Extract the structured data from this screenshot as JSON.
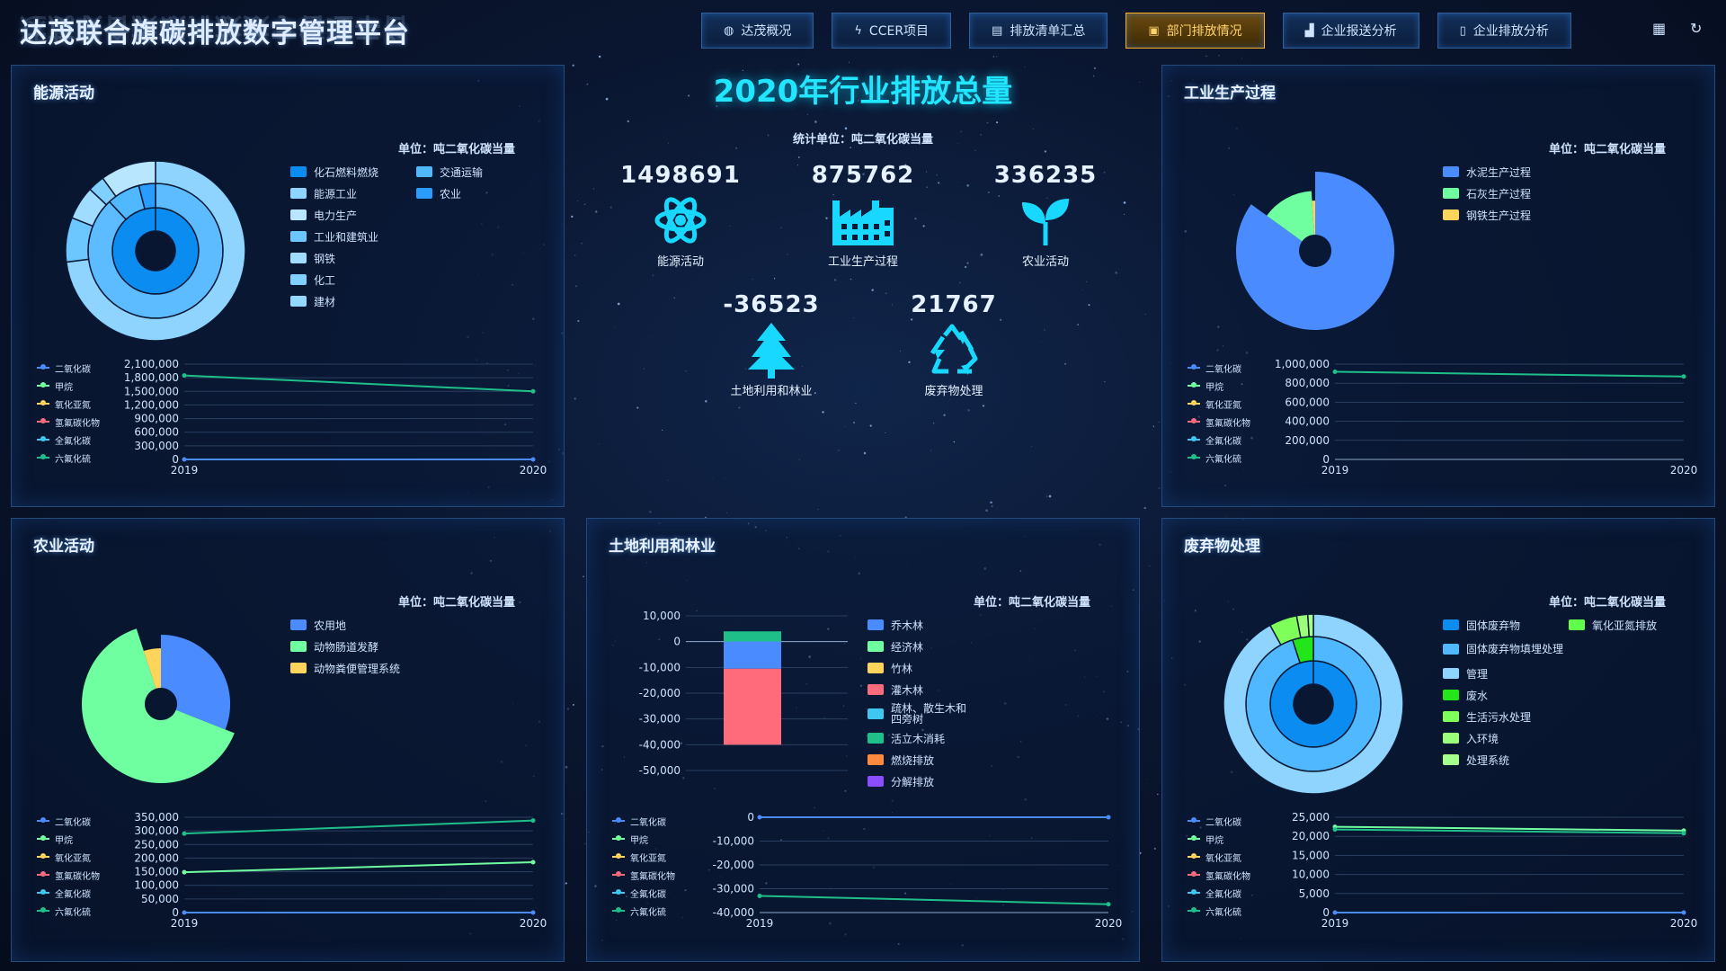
{
  "header": {
    "app_title": "达茂联合旗碳排放数字管理平台",
    "nav": [
      {
        "label": "达茂概况",
        "icon": "globe-icon",
        "active": false
      },
      {
        "label": "CCER项目",
        "icon": "bolt-icon",
        "active": false
      },
      {
        "label": "排放清单汇总",
        "icon": "list-icon",
        "active": false
      },
      {
        "label": "部门排放情况",
        "icon": "document-icon",
        "active": true
      },
      {
        "label": "企业报送分析",
        "icon": "bar-chart-icon",
        "active": false
      },
      {
        "label": "企业排放分析",
        "icon": "file-icon",
        "active": false
      }
    ],
    "icons": [
      "calendar-icon",
      "refresh-icon"
    ]
  },
  "center": {
    "title": "2020年行业排放总量",
    "unit": "统计单位：吨二氧化碳当量",
    "stats": [
      {
        "value": "1498691",
        "label": "能源活动",
        "icon": "atom-icon"
      },
      {
        "value": "875762",
        "label": "工业生产过程",
        "icon": "factory-icon"
      },
      {
        "value": "336235",
        "label": "农业活动",
        "icon": "sprout-icon"
      },
      {
        "value": "-36523",
        "label": "土地利用和林业",
        "icon": "tree-icon"
      },
      {
        "value": "21767",
        "label": "废弃物处理",
        "icon": "recycle-icon"
      }
    ]
  },
  "gas_legend": [
    "二氧化碳",
    "甲烷",
    "氧化亚氮",
    "氢氟碳化物",
    "全氟化碳",
    "六氟化硫"
  ],
  "gas_colors": [
    "#4a8cff",
    "#6fffa0",
    "#ffd45a",
    "#ff6b7a",
    "#3ec8f0",
    "#1fbf8a"
  ],
  "panels": {
    "energy": {
      "title": "能源活动",
      "unit": "单位：吨二氧化碳当量",
      "legend": [
        {
          "label": "化石燃料燃烧",
          "color": "#0a8cf0"
        },
        {
          "label": "交通运输",
          "color": "#4fb8ff"
        },
        {
          "label": "能源工业",
          "color": "#8fd4ff"
        },
        {
          "label": "农业",
          "color": "#2a9bff"
        },
        {
          "label": "电力生产",
          "color": "#b8e6ff"
        },
        {
          "label": "工业和建筑业",
          "color": "#6cc6ff"
        },
        {
          "label": "钢铁",
          "color": "#9fdcff"
        },
        {
          "label": "化工",
          "color": "#7fcfff"
        },
        {
          "label": "建材",
          "color": "#94d8ff"
        }
      ]
    },
    "industry": {
      "title": "工业生产过程",
      "unit": "单位：吨二氧化碳当量",
      "legend": [
        {
          "label": "水泥生产过程",
          "color": "#4a8cff"
        },
        {
          "label": "石灰生产过程",
          "color": "#6fffa0"
        },
        {
          "label": "钢铁生产过程",
          "color": "#ffd45a"
        }
      ]
    },
    "agriculture": {
      "title": "农业活动",
      "unit": "单位：吨二氧化碳当量",
      "legend": [
        {
          "label": "农用地",
          "color": "#4a8cff"
        },
        {
          "label": "动物肠道发酵",
          "color": "#6fffa0"
        },
        {
          "label": "动物粪便管理系统",
          "color": "#ffd45a"
        }
      ]
    },
    "land": {
      "title": "土地利用和林业",
      "unit": "单位：吨二氧化碳当量",
      "legend": [
        {
          "label": "乔木林",
          "color": "#4a8cff"
        },
        {
          "label": "经济林",
          "color": "#6fffa0"
        },
        {
          "label": "竹林",
          "color": "#ffd45a"
        },
        {
          "label": "灌木林",
          "color": "#ff6b7a"
        },
        {
          "label": "疏林、散生木和四旁树",
          "color": "#3ec8f0"
        },
        {
          "label": "活立木消耗",
          "color": "#1fbf8a"
        },
        {
          "label": "燃烧排放",
          "color": "#ff8a3d"
        },
        {
          "label": "分解排放",
          "color": "#8a4dff"
        }
      ]
    },
    "waste": {
      "title": "废弃物处理",
      "unit": "单位：吨二氧化碳当量",
      "legend": [
        {
          "label": "固体废弃物",
          "color": "#0a8cf0"
        },
        {
          "label": "氧化亚氮排放",
          "color": "#5fff4a"
        },
        {
          "label": "固体废弃物填埋处理",
          "color": "#4fb8ff"
        },
        {
          "label": "管理",
          "color": "#8fd4ff"
        },
        {
          "label": "废水",
          "color": "#22e61a"
        },
        {
          "label": "生活污水处理",
          "color": "#7fff5a"
        },
        {
          "label": "入环境",
          "color": "#9bff7a"
        },
        {
          "label": "处理系统",
          "color": "#a6ff8a"
        }
      ]
    }
  },
  "chart_data": [
    {
      "id": "energy-sunburst",
      "type": "pie",
      "rings": [
        {
          "labels": [
            "化石燃料燃烧"
          ],
          "values": [
            100
          ],
          "colors": [
            "#0a8cf0"
          ]
        },
        {
          "labels": [
            "能源工业",
            "交通运输",
            "农业"
          ],
          "values": [
            88,
            8,
            4
          ],
          "colors": [
            "#5cbcff",
            "#4fb8ff",
            "#2a9bff"
          ]
        },
        {
          "labels": [
            "电力生产",
            "工业和建筑业",
            "钢铁",
            "化工",
            "建材"
          ],
          "values": [
            73,
            8,
            6,
            3,
            10
          ],
          "colors": [
            "#8fd4ff",
            "#6cc6ff",
            "#9fdcff",
            "#7fcfff",
            "#b8e6ff"
          ]
        }
      ]
    },
    {
      "id": "energy-line",
      "type": "line",
      "x": [
        "2019",
        "2020"
      ],
      "ylim": [
        0,
        2100000
      ],
      "yticks": [
        "2,100,000",
        "1,800,000",
        "1,500,000",
        "1,200,000",
        "900,000",
        "600,000",
        "300,000",
        "0"
      ],
      "series": [
        {
          "name": "二氧化碳",
          "values": [
            0,
            0
          ]
        },
        {
          "name": "六氟化硫",
          "values": [
            1850000,
            1500000
          ]
        }
      ]
    },
    {
      "id": "industry-pie",
      "type": "pie",
      "labels": [
        "水泥生产过程",
        "石灰生产过程",
        "钢铁生产过程"
      ],
      "values": [
        85,
        14,
        1
      ]
    },
    {
      "id": "industry-line",
      "type": "line",
      "x": [
        "2019",
        "2020"
      ],
      "ylim": [
        0,
        1000000
      ],
      "yticks": [
        "1,000,000",
        "800,000",
        "600,000",
        "400,000",
        "200,000",
        "0"
      ],
      "series": [
        {
          "name": "六氟化硫",
          "values": [
            920000,
            870000
          ]
        }
      ]
    },
    {
      "id": "agri-pie",
      "type": "pie",
      "labels": [
        "农用地",
        "动物肠道发酵",
        "动物粪便管理系统"
      ],
      "values": [
        31,
        64,
        5
      ]
    },
    {
      "id": "agri-line",
      "type": "line",
      "x": [
        "2019",
        "2020"
      ],
      "ylim": [
        0,
        350000
      ],
      "yticks": [
        "350,000",
        "300,000",
        "250,000",
        "200,000",
        "150,000",
        "100,000",
        "50,000",
        "0"
      ],
      "series": [
        {
          "name": "二氧化碳",
          "values": [
            0,
            0
          ]
        },
        {
          "name": "甲烷",
          "values": [
            148000,
            185000
          ]
        },
        {
          "name": "六氟化硫",
          "values": [
            290000,
            338000
          ]
        }
      ]
    },
    {
      "id": "land-bar",
      "type": "bar",
      "ylim": [
        -50000,
        10000
      ],
      "yticks": [
        "10,000",
        "0",
        "-10,000",
        "-20,000",
        "-30,000",
        "-40,000",
        "-50,000"
      ],
      "segments": [
        {
          "name": "活立木消耗",
          "from": 0,
          "to": 4000
        },
        {
          "name": "乔木林",
          "from": 0,
          "to": -10500
        },
        {
          "name": "灌木林",
          "from": -10500,
          "to": -40000
        }
      ]
    },
    {
      "id": "land-line",
      "type": "line",
      "x": [
        "2019",
        "2020"
      ],
      "ylim": [
        -40000,
        0
      ],
      "yticks": [
        "0",
        "-10,000",
        "-20,000",
        "-30,000",
        "-40,000"
      ],
      "series": [
        {
          "name": "二氧化碳",
          "values": [
            0,
            0
          ]
        },
        {
          "name": "六氟化硫",
          "values": [
            -33000,
            -36500
          ]
        }
      ]
    },
    {
      "id": "waste-sunburst",
      "type": "pie",
      "rings": [
        {
          "labels": [
            "固体废弃物"
          ],
          "values": [
            100
          ],
          "colors": [
            "#0a8cf0"
          ]
        },
        {
          "labels": [
            "固体废弃物填埋处理",
            "废水"
          ],
          "values": [
            95,
            5
          ],
          "colors": [
            "#4fb8ff",
            "#22e61a"
          ]
        },
        {
          "labels": [
            "管理",
            "生活污水处理",
            "入环境",
            "处理系统"
          ],
          "values": [
            92,
            5,
            2,
            1
          ],
          "colors": [
            "#8fd4ff",
            "#7fff5a",
            "#9bff7a",
            "#a6ff8a"
          ]
        }
      ]
    },
    {
      "id": "waste-line",
      "type": "line",
      "x": [
        "2019",
        "2020"
      ],
      "ylim": [
        0,
        25000
      ],
      "yticks": [
        "25,000",
        "20,000",
        "15,000",
        "10,000",
        "5,000",
        "0"
      ],
      "series": [
        {
          "name": "二氧化碳",
          "values": [
            0,
            0
          ]
        },
        {
          "name": "甲烷",
          "values": [
            22500,
            21500
          ]
        },
        {
          "name": "六氟化硫",
          "values": [
            21800,
            20800
          ]
        }
      ]
    }
  ]
}
